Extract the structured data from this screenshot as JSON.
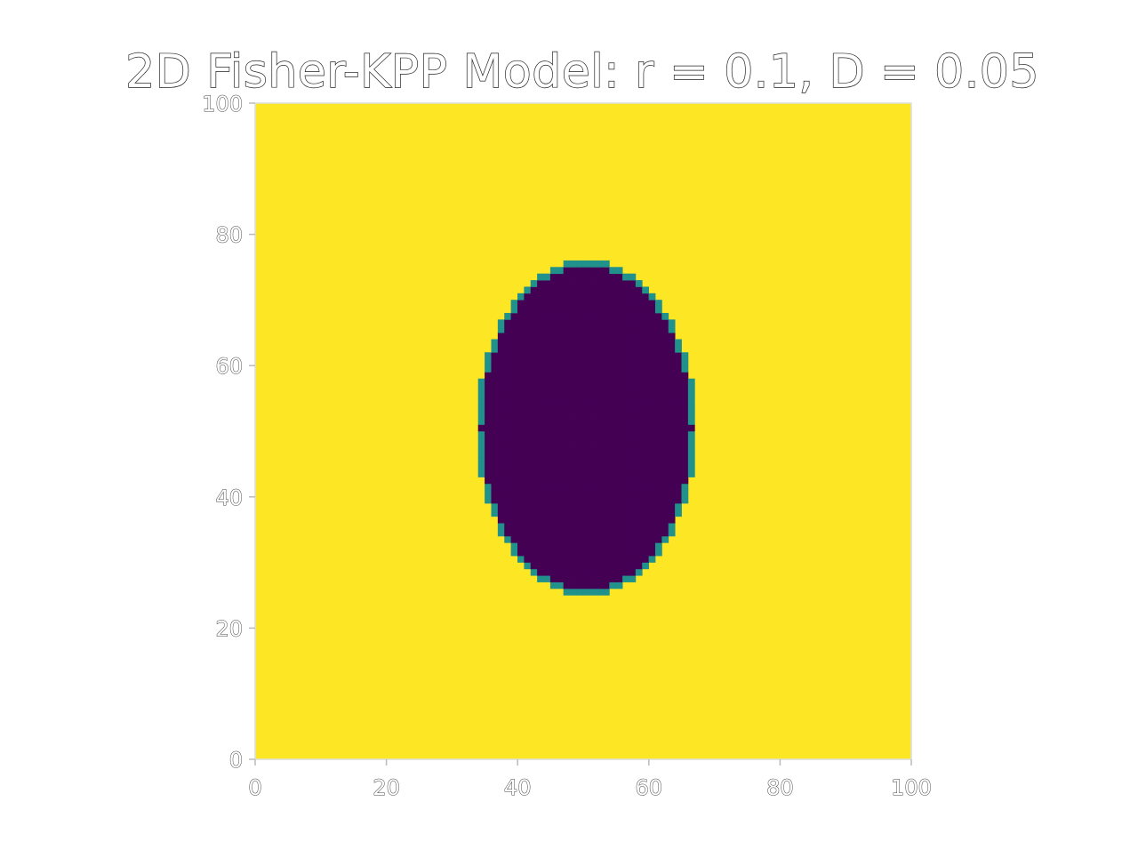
{
  "chart_data": {
    "type": "heatmap",
    "title": "2D Fisher-KPP Model: r = 0.1, D = 0.05",
    "xlabel": "",
    "ylabel": "",
    "xlim": [
      0,
      100
    ],
    "ylim": [
      0,
      100
    ],
    "x_ticks": [
      "0",
      "20",
      "40",
      "60",
      "80",
      "100"
    ],
    "y_ticks": [
      "0",
      "20",
      "40",
      "60",
      "80",
      "100"
    ],
    "x_tick_values": [
      0,
      20,
      40,
      60,
      80,
      100
    ],
    "y_tick_values": [
      0,
      20,
      40,
      60,
      80,
      100
    ],
    "colormap": "viridis",
    "background_value": 1.0,
    "background_color": "#fde725",
    "region_value": 0.0,
    "region_color": "#440154",
    "edge_color": "#21918c",
    "region": {
      "shape": "ellipse",
      "center": [
        50.5,
        50.5
      ],
      "radius_x": 16,
      "radius_y": 24.5
    },
    "grid": false,
    "legend": "none"
  }
}
